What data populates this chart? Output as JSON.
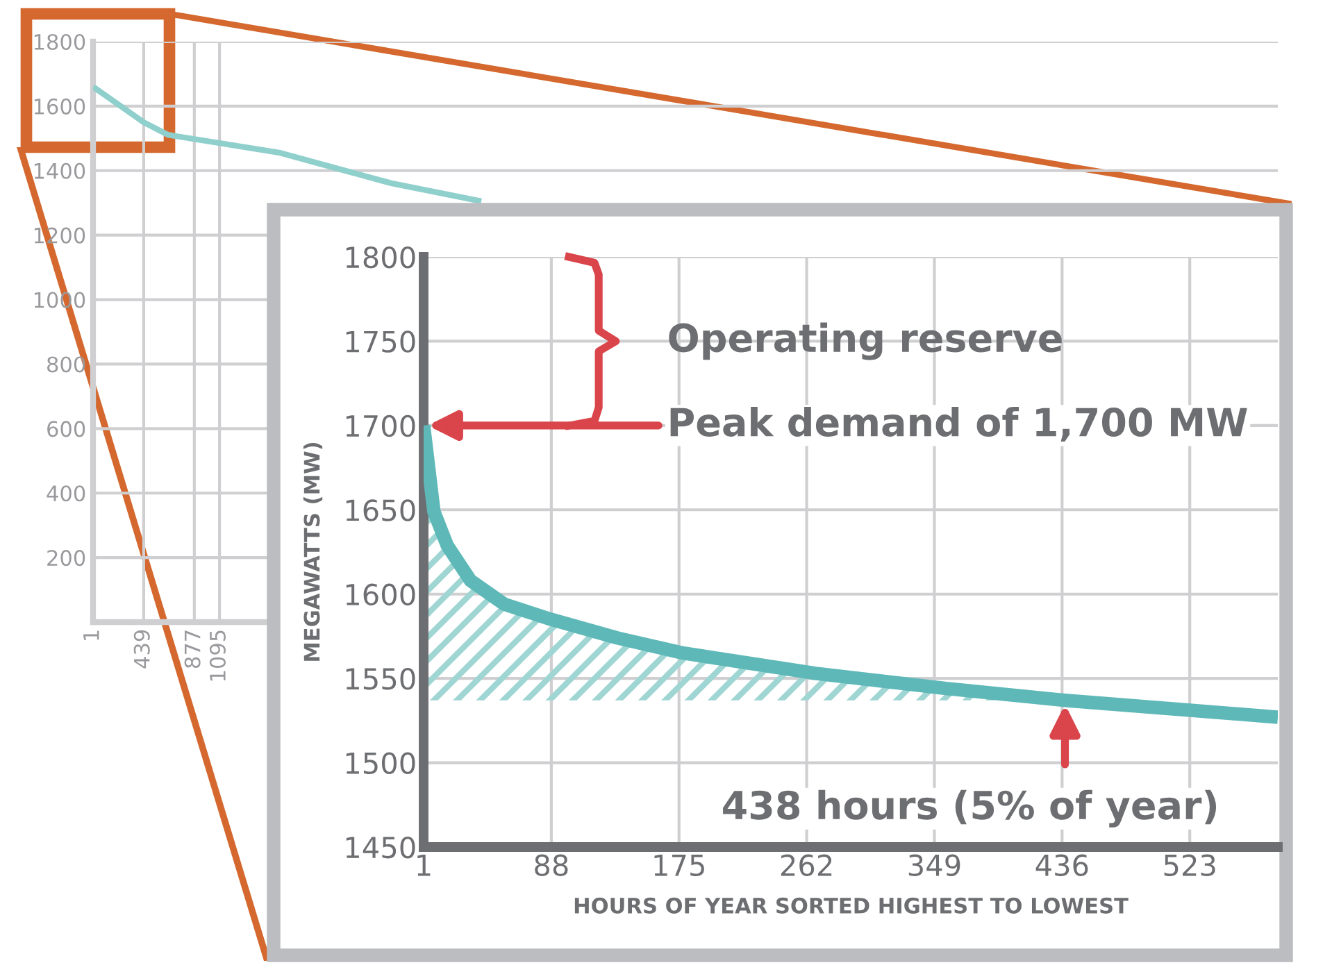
{
  "chart_data": [
    {
      "type": "line",
      "ylim": [
        0,
        1800
      ],
      "yticks": [
        200,
        400,
        600,
        800,
        1000,
        1200,
        1400,
        1600,
        1800
      ],
      "xlim": [
        1,
        10250
      ],
      "xticks": [
        1,
        439,
        877,
        1095
      ],
      "grid": true,
      "series": [
        {
          "color": "#8fcfcc",
          "x": [
            1,
            439,
            650,
            1620,
            2580,
            3360
          ],
          "values": [
            1660,
            1550,
            1511,
            1455,
            1361,
            1305
          ]
        }
      ]
    },
    {
      "type": "line",
      "ylim": [
        1450,
        1800
      ],
      "yticks": [
        1450,
        1500,
        1550,
        1600,
        1650,
        1700,
        1750,
        1800
      ],
      "xlim": [
        1,
        583
      ],
      "xticks": [
        1,
        88,
        175,
        262,
        349,
        436,
        523
      ],
      "grid": true,
      "ylabel": "MEGAWATTS (MW)",
      "xlabel": "HOURS OF YEAR SORTED HIGHEST TO LOWEST",
      "series": [
        {
          "type": "area",
          "color": "#9fd6d3",
          "x": [
            1,
            8,
            17,
            33,
            56,
            88,
            133,
            178,
            268,
            357,
            438
          ],
          "values": [
            1700,
            1649,
            1629,
            1608,
            1594,
            1585,
            1574,
            1565,
            1553,
            1544,
            1537
          ]
        },
        {
          "type": "line",
          "color": "#5fb8b8",
          "x": [
            1,
            8,
            17,
            33,
            56,
            88,
            133,
            178,
            268,
            357,
            438,
            583
          ],
          "values": [
            1700,
            1649,
            1629,
            1608,
            1594,
            1585,
            1574,
            1565,
            1553,
            1544,
            1537,
            1527
          ]
        }
      ],
      "annotations": [
        "Operating reserve",
        {
          "text": "Peak demand of 1,700 MW",
          "x": 1,
          "y": 1700
        },
        {
          "text": "438 hours (5% of year)",
          "x": 438,
          "y": 1537
        }
      ]
    }
  ]
}
